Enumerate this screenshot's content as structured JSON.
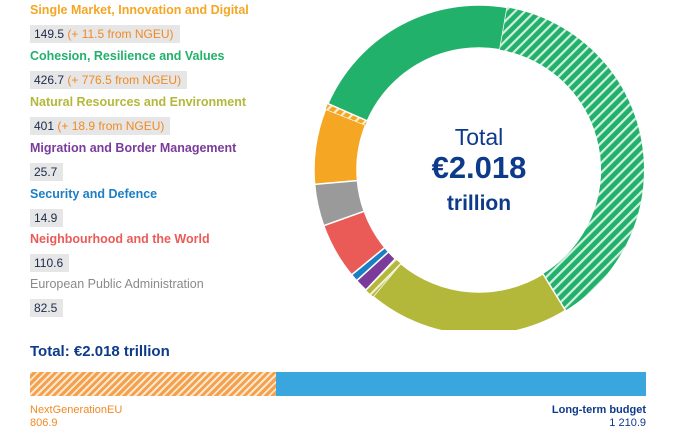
{
  "colors": {
    "single_market": "#f5a623",
    "cohesion": "#22b16a",
    "natural_resources": "#b4b83a",
    "migration": "#7a3b9a",
    "security": "#1c7fc4",
    "neighbourhood": "#ea5b57",
    "administration": "#9a9a9a",
    "ngeu": "#f5a04a",
    "long_term": "#3aa6de",
    "title": "#0e3a8a",
    "ngeu_text": "#f08a24"
  },
  "chart_data": [
    {
      "type": "pie",
      "style": "donut",
      "center_label": {
        "line1": "Total",
        "line2": "€2.018",
        "line3": "trillion"
      },
      "series": [
        {
          "name": "Single Market, Innovation and Digital",
          "value_label": "149.5",
          "ngeu_label": "(+ 11.5 from NGEU)",
          "long_term": 149.5,
          "ngeu": 11.5,
          "color_key": "single_market"
        },
        {
          "name": "Cohesion, Resilience and Values",
          "value_label": "426.7",
          "ngeu_label": "(+ 776.5 from NGEU)",
          "long_term": 426.7,
          "ngeu": 776.5,
          "color_key": "cohesion"
        },
        {
          "name": "Natural Resources and Environment",
          "value_label": "401",
          "ngeu_label": "(+ 18.9 from NGEU)",
          "long_term": 401,
          "ngeu": 18.9,
          "color_key": "natural_resources"
        },
        {
          "name": "Migration and Border Management",
          "value_label": "25.7",
          "ngeu_label": "",
          "long_term": 25.7,
          "ngeu": 0,
          "color_key": "migration"
        },
        {
          "name": "Security and Defence",
          "value_label": "14.9",
          "ngeu_label": "",
          "long_term": 14.9,
          "ngeu": 0,
          "color_key": "security"
        },
        {
          "name": "Neighbourhood and the World",
          "value_label": "110.6",
          "ngeu_label": "",
          "long_term": 110.6,
          "ngeu": 0,
          "color_key": "neighbourhood"
        },
        {
          "name": "European Public Administration",
          "value_label": "82.5",
          "ngeu_label": "",
          "long_term": 82.5,
          "ngeu": 0,
          "color_key": "administration"
        }
      ]
    },
    {
      "type": "bar",
      "style": "stacked-horizontal",
      "title": "Total: €2.018 trillion",
      "segments": [
        {
          "name": "NextGenerationEU",
          "value": 806.9,
          "value_label": "806.9",
          "color_key": "ngeu"
        },
        {
          "name": "Long-term budget",
          "value": 1210.9,
          "value_label": "1 210.9",
          "color_key": "long_term"
        }
      ]
    }
  ]
}
